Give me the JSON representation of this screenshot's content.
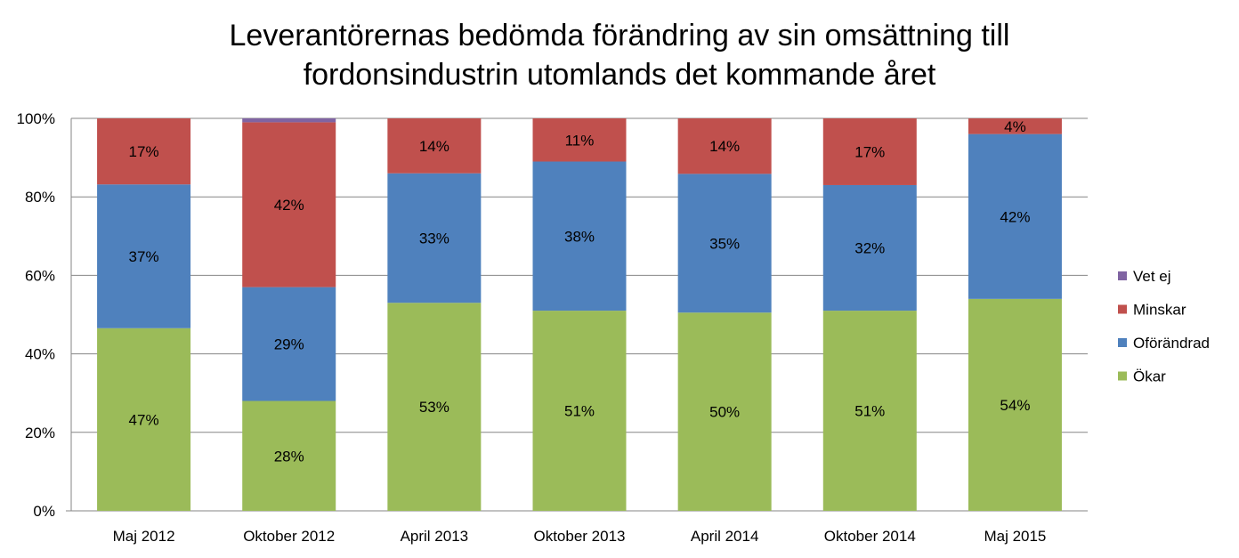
{
  "chart_data": {
    "type": "bar",
    "stacked": true,
    "percent_stacked": true,
    "title_lines": [
      "Leverantörernas bedömda förändring av sin omsättning till",
      "fordonsindustrin utomlands  det kommande året"
    ],
    "categories": [
      "Maj 2012",
      "Oktober 2012",
      "April 2013",
      "Oktober 2013",
      "April 2014",
      "Oktober 2014",
      "Maj 2015"
    ],
    "series": [
      {
        "name": "Ökar",
        "color": "#9bbb59",
        "values": [
          47,
          28,
          53,
          51,
          50,
          51,
          54
        ],
        "labels": [
          "47%",
          "28%",
          "53%",
          "51%",
          "50%",
          "51%",
          "54%"
        ]
      },
      {
        "name": "Oförändrad",
        "color": "#4f81bd",
        "values": [
          37,
          29,
          33,
          38,
          35,
          32,
          42
        ],
        "labels": [
          "37%",
          "29%",
          "33%",
          "38%",
          "35%",
          "32%",
          "42%"
        ]
      },
      {
        "name": "Minskar",
        "color": "#c0504d",
        "values": [
          17,
          42,
          14,
          11,
          14,
          17,
          4
        ],
        "labels": [
          "17%",
          "42%",
          "14%",
          "11%",
          "14%",
          "17%",
          "4%"
        ]
      },
      {
        "name": "Vet ej",
        "color": "#8064a2",
        "values": [
          0,
          1,
          0,
          0,
          0,
          0,
          0
        ],
        "labels": [
          "",
          "",
          "",
          "",
          "",
          "",
          ""
        ]
      }
    ],
    "y_ticks": [
      "0%",
      "20%",
      "40%",
      "60%",
      "80%",
      "100%"
    ],
    "ylim": [
      0,
      100
    ],
    "grid": true,
    "legend": {
      "position": "right",
      "order": [
        "Vet ej",
        "Minskar",
        "Oförändrad",
        "Ökar"
      ]
    }
  }
}
